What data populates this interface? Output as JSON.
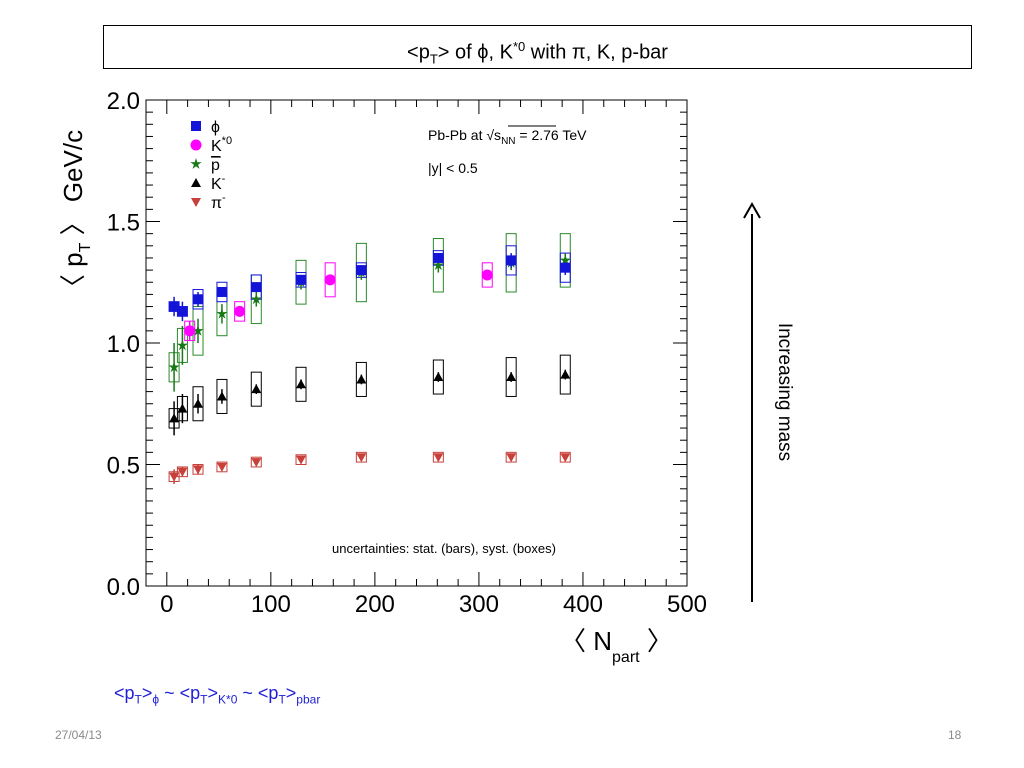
{
  "slide": {
    "title_parts": [
      "<p",
      "T",
      "> of ",
      "ϕ",
      ", K",
      "*0",
      " with π, K, p-bar"
    ],
    "summary_parts": [
      "<p",
      "T",
      ">",
      "ϕ",
      " ~ <p",
      "T",
      ">",
      "K*0",
      " ~ <p",
      "T",
      ">",
      "pbar"
    ],
    "date": "27/04/13",
    "page_number": "18",
    "arrow_label": "Increasing mass"
  },
  "chart_data": {
    "type": "scatter",
    "ylabel_parts": [
      "〈 p",
      "T",
      " 〉 GeV/c"
    ],
    "xlabel_parts": [
      "〈 N",
      "part",
      " 〉"
    ],
    "xlim": [
      -20,
      500
    ],
    "ylim": [
      0,
      2.0
    ],
    "x_ticks": [
      "0",
      "100",
      "200",
      "300",
      "400",
      "500"
    ],
    "y_ticks": [
      "0.0",
      "0.5",
      "1.0",
      "1.5",
      "2.0"
    ],
    "annotations": {
      "system": "Pb-Pb at √s",
      "system_sub": "NN",
      "energy": " = 2.76 TeV",
      "rapidity": "|y| < 0.5",
      "uncertainties": "uncertainties: stat. (bars), syst. (boxes)"
    },
    "legend": [
      {
        "label": "ϕ",
        "sup": "",
        "color": "#1414d8",
        "marker": "square"
      },
      {
        "label": "K",
        "sup": "*0",
        "color": "#ff00ff",
        "marker": "circle"
      },
      {
        "label": "p",
        "sup": "",
        "overline": true,
        "color": "#187818",
        "marker": "star"
      },
      {
        "label": "K",
        "sup": "-",
        "color": "#000000",
        "marker": "triangle-up"
      },
      {
        "label": "π",
        "sup": "-",
        "color": "#c8403a",
        "marker": "triangle-down"
      }
    ],
    "series": [
      {
        "name": "π-",
        "color": "#c8403a",
        "box_color": "#c8403a",
        "marker": "triangle-down",
        "points": [
          {
            "x": 7,
            "y": 0.45,
            "stat": 0.03,
            "syst": 0.02
          },
          {
            "x": 15,
            "y": 0.47,
            "stat": 0.02,
            "syst": 0.02
          },
          {
            "x": 30,
            "y": 0.48,
            "stat": 0.02,
            "syst": 0.02
          },
          {
            "x": 53,
            "y": 0.49,
            "stat": 0.015,
            "syst": 0.02
          },
          {
            "x": 86,
            "y": 0.51,
            "stat": 0.01,
            "syst": 0.02
          },
          {
            "x": 129,
            "y": 0.52,
            "stat": 0.01,
            "syst": 0.02
          },
          {
            "x": 187,
            "y": 0.53,
            "stat": 0.01,
            "syst": 0.02
          },
          {
            "x": 261,
            "y": 0.53,
            "stat": 0.01,
            "syst": 0.02
          },
          {
            "x": 331,
            "y": 0.53,
            "stat": 0.01,
            "syst": 0.02
          },
          {
            "x": 383,
            "y": 0.53,
            "stat": 0.01,
            "syst": 0.02
          }
        ]
      },
      {
        "name": "K-",
        "color": "#000000",
        "box_color": "#000000",
        "marker": "triangle-up",
        "points": [
          {
            "x": 7,
            "y": 0.69,
            "stat": 0.07,
            "syst": 0.04
          },
          {
            "x": 15,
            "y": 0.73,
            "stat": 0.06,
            "syst": 0.05
          },
          {
            "x": 30,
            "y": 0.75,
            "stat": 0.04,
            "syst": 0.07
          },
          {
            "x": 53,
            "y": 0.78,
            "stat": 0.03,
            "syst": 0.07
          },
          {
            "x": 86,
            "y": 0.81,
            "stat": 0.02,
            "syst": 0.07
          },
          {
            "x": 129,
            "y": 0.83,
            "stat": 0.02,
            "syst": 0.07
          },
          {
            "x": 187,
            "y": 0.85,
            "stat": 0.02,
            "syst": 0.07
          },
          {
            "x": 261,
            "y": 0.86,
            "stat": 0.02,
            "syst": 0.07
          },
          {
            "x": 331,
            "y": 0.86,
            "stat": 0.02,
            "syst": 0.08
          },
          {
            "x": 383,
            "y": 0.87,
            "stat": 0.02,
            "syst": 0.08
          }
        ]
      },
      {
        "name": "p-bar",
        "color": "#187818",
        "box_color": "#2a8a2a",
        "marker": "star",
        "points": [
          {
            "x": 7,
            "y": 0.9,
            "stat": 0.1,
            "syst": 0.06
          },
          {
            "x": 15,
            "y": 0.99,
            "stat": 0.08,
            "syst": 0.07
          },
          {
            "x": 30,
            "y": 1.05,
            "stat": 0.05,
            "syst": 0.1
          },
          {
            "x": 53,
            "y": 1.12,
            "stat": 0.04,
            "syst": 0.09
          },
          {
            "x": 86,
            "y": 1.18,
            "stat": 0.03,
            "syst": 0.1
          },
          {
            "x": 129,
            "y": 1.25,
            "stat": 0.03,
            "syst": 0.09
          },
          {
            "x": 187,
            "y": 1.29,
            "stat": 0.03,
            "syst": 0.12
          },
          {
            "x": 261,
            "y": 1.32,
            "stat": 0.03,
            "syst": 0.11
          },
          {
            "x": 331,
            "y": 1.33,
            "stat": 0.03,
            "syst": 0.12
          },
          {
            "x": 383,
            "y": 1.34,
            "stat": 0.03,
            "syst": 0.11
          }
        ]
      },
      {
        "name": "K*0",
        "color": "#ff00ff",
        "box_color": "#ff00ff",
        "marker": "circle",
        "points": [
          {
            "x": 22,
            "y": 1.05,
            "stat": 0.04,
            "syst": 0.04
          },
          {
            "x": 70,
            "y": 1.13,
            "stat": 0.02,
            "syst": 0.04
          },
          {
            "x": 157,
            "y": 1.26,
            "stat": 0.02,
            "syst": 0.07
          },
          {
            "x": 308,
            "y": 1.28,
            "stat": 0.02,
            "syst": 0.05
          }
        ]
      },
      {
        "name": "ϕ",
        "color": "#1414d8",
        "box_color": "#1414d8",
        "marker": "square",
        "points": [
          {
            "x": 7,
            "y": 1.15,
            "stat": 0.04,
            "syst": 0.02
          },
          {
            "x": 15,
            "y": 1.13,
            "stat": 0.04,
            "syst": 0.02
          },
          {
            "x": 30,
            "y": 1.18,
            "stat": 0.03,
            "syst": 0.04
          },
          {
            "x": 53,
            "y": 1.21,
            "stat": 0.02,
            "syst": 0.04
          },
          {
            "x": 86,
            "y": 1.23,
            "stat": 0.02,
            "syst": 0.05
          },
          {
            "x": 129,
            "y": 1.26,
            "stat": 0.02,
            "syst": 0.03
          },
          {
            "x": 187,
            "y": 1.3,
            "stat": 0.02,
            "syst": 0.03
          },
          {
            "x": 261,
            "y": 1.35,
            "stat": 0.02,
            "syst": 0.03
          },
          {
            "x": 331,
            "y": 1.34,
            "stat": 0.03,
            "syst": 0.06
          },
          {
            "x": 383,
            "y": 1.31,
            "stat": 0.03,
            "syst": 0.06
          }
        ]
      }
    ]
  }
}
